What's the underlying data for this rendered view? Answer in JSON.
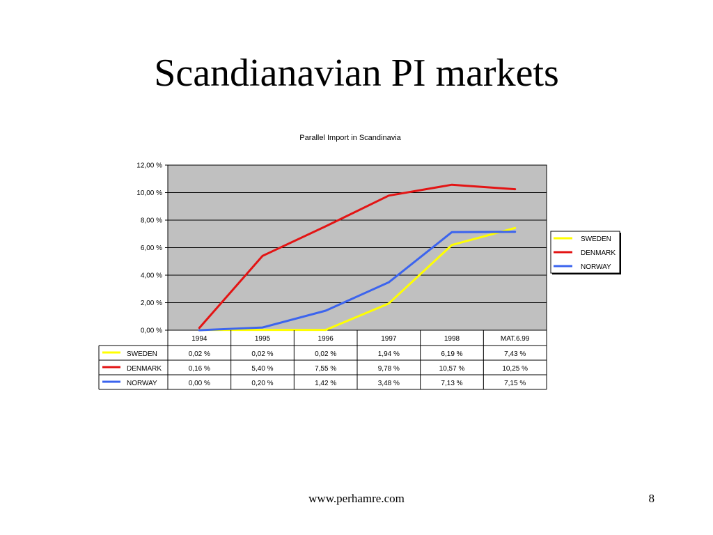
{
  "slide": {
    "title": "Scandianavian PI markets",
    "footer_url": "www.perhamre.com",
    "page_number": "8"
  },
  "chart_data": {
    "type": "line",
    "title": "Parallel Import in Scandinavia",
    "categories": [
      "1994",
      "1995",
      "1996",
      "1997",
      "1998",
      "MAT.6.99"
    ],
    "y_ticks": [
      "0,00 %",
      "2,00 %",
      "4,00 %",
      "6,00 %",
      "8,00 %",
      "10,00 %",
      "12,00 %"
    ],
    "ylim": [
      0,
      12
    ],
    "grid": true,
    "legend_position": "right",
    "plot_background": "#c0c0c0",
    "series": [
      {
        "name": "SWEDEN",
        "color": "#ffff00",
        "values": [
          0.02,
          0.02,
          0.02,
          1.94,
          6.19,
          7.43
        ],
        "labels": [
          "0,02 %",
          "0,02 %",
          "0,02 %",
          "1,94 %",
          "6,19 %",
          "7,43 %"
        ]
      },
      {
        "name": "DENMARK",
        "color": "#e31414",
        "values": [
          0.16,
          5.4,
          7.55,
          9.78,
          10.57,
          10.25
        ],
        "labels": [
          "0,16 %",
          "5,40 %",
          "7,55 %",
          "9,78 %",
          "10,57 %",
          "10,25 %"
        ]
      },
      {
        "name": "NORWAY",
        "color": "#3c64ee",
        "values": [
          0.0,
          0.2,
          1.42,
          3.48,
          7.13,
          7.15
        ],
        "labels": [
          "0,00 %",
          "0,20 %",
          "1,42 %",
          "3,48 %",
          "7,13 %",
          "7,15 %"
        ]
      }
    ]
  }
}
